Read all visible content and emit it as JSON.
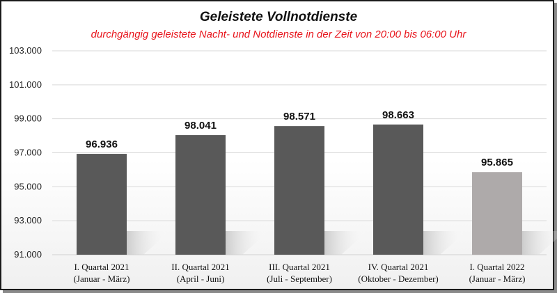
{
  "chart_data": {
    "type": "bar",
    "title": "Geleistete  Vollnotdienste",
    "subtitle": "durchgängig geleistete Nacht- und Notdienste in der Zeit von 20:00 bis 06:00 Uhr",
    "categories": [
      [
        "I. Quartal 2021",
        "(Januar - März)"
      ],
      [
        "II. Quartal 2021",
        "(April - Juni)"
      ],
      [
        "III. Quartal 2021",
        "(Juli - September)"
      ],
      [
        "IV. Quartal 2021",
        "(Oktober - Dezember)"
      ],
      [
        "I. Quartal 2022",
        "(Januar - März)"
      ]
    ],
    "values": [
      96936,
      98041,
      98571,
      98663,
      95865
    ],
    "value_labels": [
      "96.936",
      "98.041",
      "98.571",
      "98.663",
      "95.865"
    ],
    "bar_colors": [
      "#595959",
      "#595959",
      "#595959",
      "#595959",
      "#aeaaaa"
    ],
    "ylim": [
      91000,
      103000
    ],
    "yticks": [
      91000,
      93000,
      95000,
      97000,
      99000,
      101000,
      103000
    ],
    "ytick_labels": [
      "91.000",
      "93.000",
      "95.000",
      "97.000",
      "99.000",
      "101.000",
      "103.000"
    ],
    "grid": true,
    "colors": {
      "title": "#111111",
      "subtitle": "#e8141b"
    }
  }
}
